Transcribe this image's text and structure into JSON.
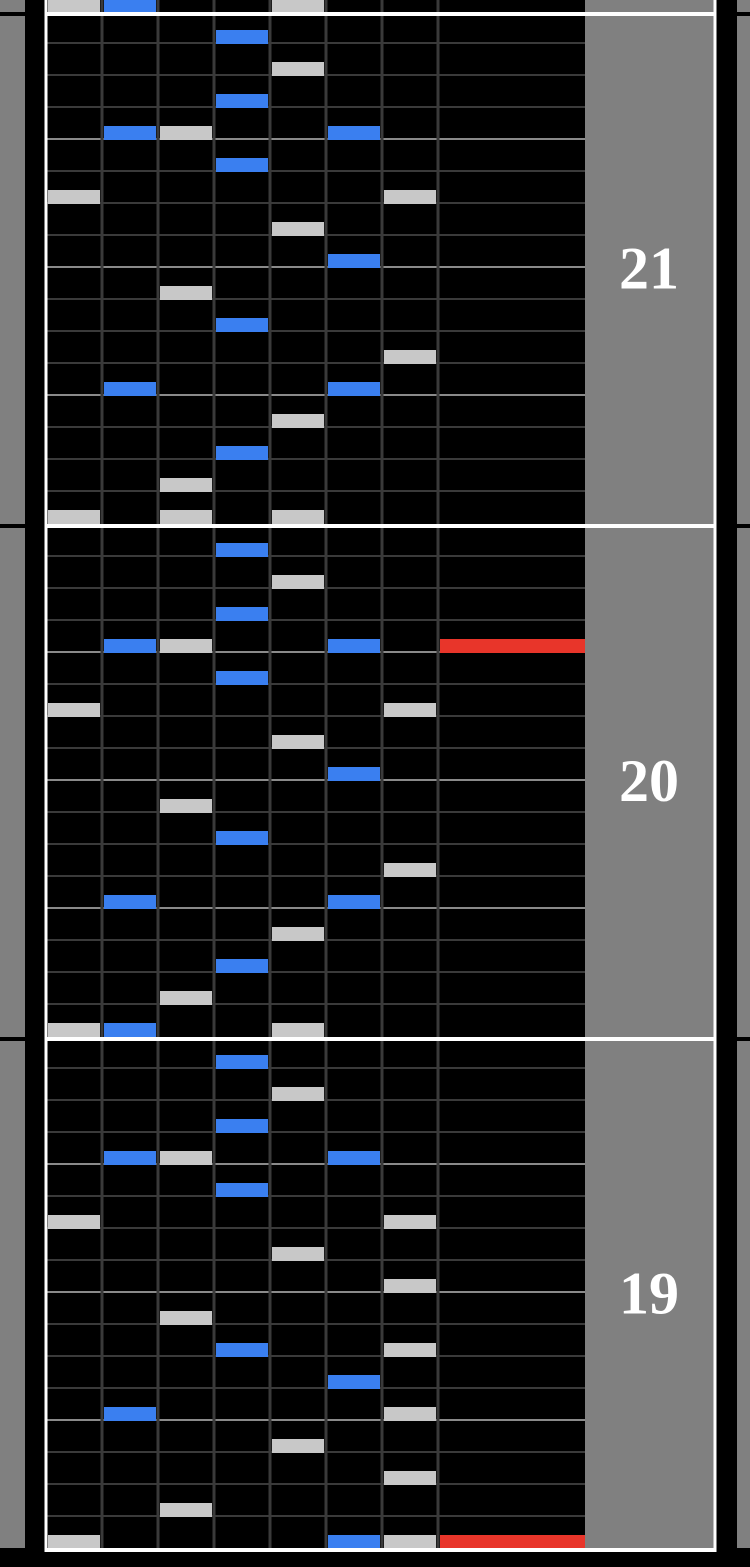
{
  "measures": [
    "21",
    "20",
    "19"
  ]
}
